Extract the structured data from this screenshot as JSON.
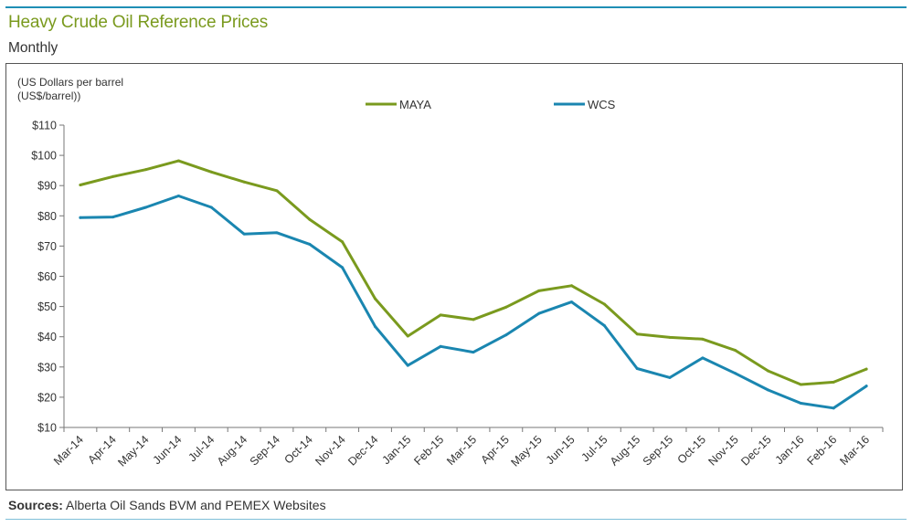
{
  "header": {
    "title": "Heavy Crude Oil Reference Prices",
    "subtitle": "Monthly"
  },
  "source": {
    "label": "Sources:",
    "text": " Alberta Oil Sands BVM and PEMEX Websites"
  },
  "chart_data": {
    "type": "line",
    "ylabel_line1": "(US Dollars per barrel",
    "ylabel_line2": "(US$/barrel))",
    "ylim": [
      10,
      110
    ],
    "yticks": [
      110,
      100,
      90,
      80,
      70,
      60,
      50,
      40,
      30,
      20,
      10
    ],
    "ytick_labels": [
      "$110",
      "$100",
      "$90",
      "$80",
      "$70",
      "$60",
      "$50",
      "$40",
      "$30",
      "$20",
      "$10"
    ],
    "categories": [
      "Mar-14",
      "Apr-14",
      "May-14",
      "Jun-14",
      "Jul-14",
      "Aug-14",
      "Sep-14",
      "Oct-14",
      "Nov-14",
      "Dec-14",
      "Jan-15",
      "Feb-15",
      "Mar-15",
      "Apr-15",
      "May-15",
      "Jun-15",
      "Jul-15",
      "Aug-15",
      "Sep-15",
      "Oct-15",
      "Nov-15",
      "Dec-15",
      "Jan-16",
      "Feb-16",
      "Mar-16"
    ],
    "grid": false,
    "legend_position": "top",
    "series": [
      {
        "name": "MAYA",
        "color": "#7a9a1e",
        "values": [
          90.2,
          93.0,
          95.3,
          98.2,
          94.5,
          91.2,
          88.3,
          78.8,
          71.4,
          52.6,
          40.2,
          47.2,
          45.7,
          49.8,
          55.2,
          56.9,
          50.8,
          40.9,
          39.8,
          39.2,
          35.5,
          28.7,
          24.2,
          25.0,
          29.3
        ]
      },
      {
        "name": "WCS",
        "color": "#1a86b0",
        "values": [
          79.4,
          79.6,
          82.8,
          86.6,
          82.8,
          74.0,
          74.4,
          70.6,
          62.9,
          43.4,
          30.5,
          36.8,
          34.9,
          40.6,
          47.7,
          51.5,
          43.7,
          29.5,
          26.5,
          33.0,
          27.9,
          22.4,
          18.0,
          16.4,
          23.7
        ]
      }
    ]
  }
}
